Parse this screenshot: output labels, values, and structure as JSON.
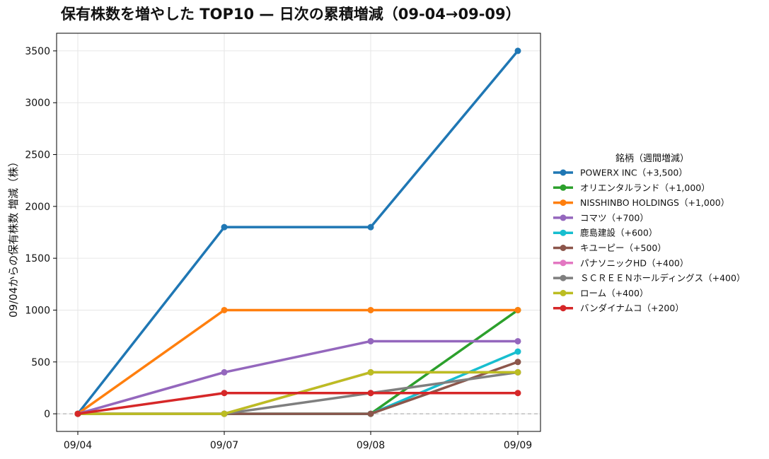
{
  "chart_data": {
    "type": "line",
    "title": "保有株数を増やした TOP10 — 日次の累積増減（09-04→09-09）",
    "xlabel": "",
    "ylabel": "09/04からの保有株数 増減（株）",
    "categories": [
      "09/04",
      "09/07",
      "09/08",
      "09/09"
    ],
    "ylim": [
      -170,
      3670
    ],
    "yticks": [
      0,
      500,
      1000,
      1500,
      2000,
      2500,
      3000,
      3500
    ],
    "grid": true,
    "zero_line": "dashed",
    "legend": {
      "title": "銘柄（週間増減）",
      "placement": "outside-right"
    },
    "series": [
      {
        "name": "POWERX INC（+3,500）",
        "color": "#1f77b4",
        "values": [
          0,
          1800,
          1800,
          3500
        ]
      },
      {
        "name": "オリエンタルランド（+1,000）",
        "color": "#2ca02c",
        "values": [
          0,
          0,
          0,
          1000
        ]
      },
      {
        "name": "NISSHINBO HOLDINGS（+1,000）",
        "color": "#ff7f0e",
        "values": [
          0,
          1000,
          1000,
          1000
        ]
      },
      {
        "name": "コマツ（+700）",
        "color": "#9467bd",
        "values": [
          0,
          400,
          700,
          700
        ]
      },
      {
        "name": "鹿島建設（+600）",
        "color": "#17becf",
        "values": [
          0,
          0,
          0,
          600
        ]
      },
      {
        "name": "キユーピー（+500）",
        "color": "#8c564b",
        "values": [
          0,
          0,
          0,
          500
        ]
      },
      {
        "name": "パナソニックHD（+400）",
        "color": "#e377c2",
        "values": [
          0,
          0,
          400,
          400
        ]
      },
      {
        "name": "ＳＣＲＥＥＮホールディングス（+400）",
        "color": "#7f7f7f",
        "values": [
          0,
          0,
          200,
          400
        ]
      },
      {
        "name": "ローム（+400）",
        "color": "#bcbd22",
        "values": [
          0,
          0,
          400,
          400
        ]
      },
      {
        "name": "バンダイナムコ（+200）",
        "color": "#d62728",
        "values": [
          0,
          200,
          200,
          200
        ]
      }
    ]
  }
}
